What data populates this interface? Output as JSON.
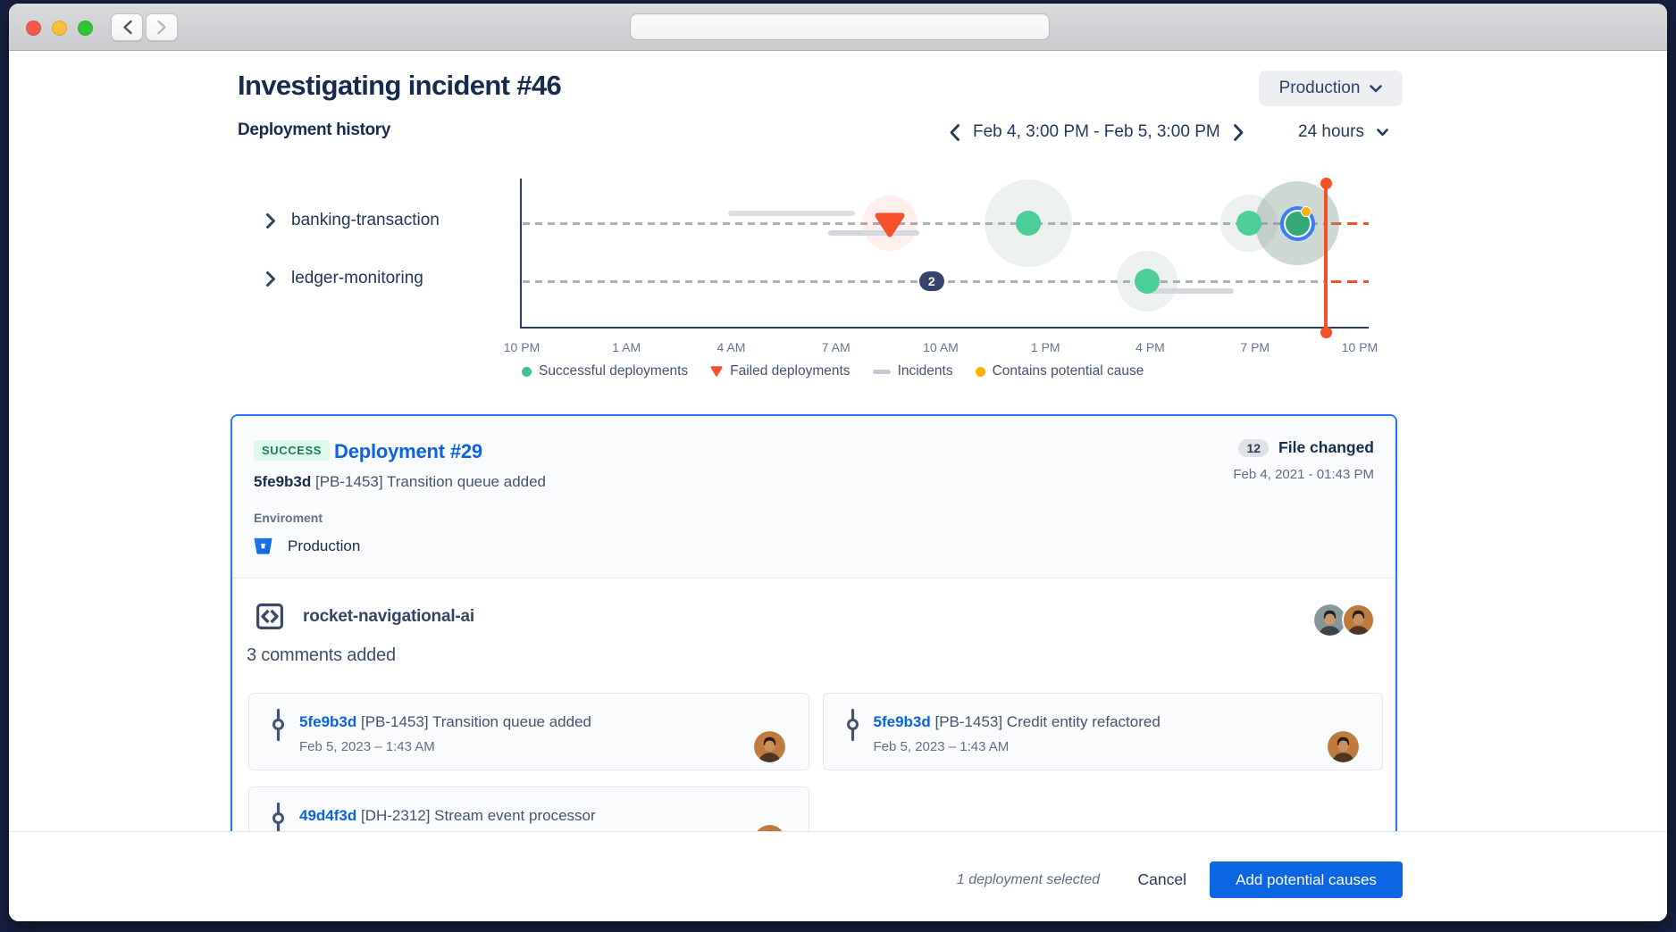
{
  "window": {
    "controls": [
      "close",
      "minimize",
      "zoom"
    ],
    "url_value": ""
  },
  "header": {
    "title": "Investigating incident #46",
    "environment_selector": "Production",
    "section_title": "Deployment history",
    "date_range": "Feb 4, 3:00 PM - Feb 5, 3:00 PM",
    "time_window": "24 hours"
  },
  "chart_data": {
    "type": "timeline",
    "title": "Deployment history",
    "x_ticks": [
      "10 PM",
      "1 AM",
      "4 AM",
      "7 AM",
      "10 AM",
      "1 PM",
      "4 PM",
      "7 PM",
      "10 PM"
    ],
    "x_range_hours": 24,
    "grid": "dashed-row-lines",
    "legend_position": "bottom",
    "rows": [
      {
        "label": "banking-transaction",
        "incidents": [
          {
            "start_h": 5.9,
            "end_h": 9.55,
            "lane": -1
          },
          {
            "start_h": 8.78,
            "end_h": 11.39,
            "lane": 1
          }
        ],
        "deployments": [
          {
            "time_h": 10.55,
            "status": "failed",
            "halo_r": 31
          },
          {
            "time_h": 14.5,
            "status": "success",
            "halo_r": 49
          },
          {
            "time_h": 20.84,
            "status": "success",
            "halo_r": 32
          },
          {
            "time_h": 22.22,
            "status": "success",
            "halo_r": 47,
            "selected": true,
            "potential_cause": true
          }
        ],
        "clusters": []
      },
      {
        "label": "ledger-monitoring",
        "incidents": [
          {
            "start_h": 17.75,
            "end_h": 20.38,
            "lane": 1
          }
        ],
        "deployments": [
          {
            "time_h": 17.9,
            "status": "success",
            "halo_r": 34
          }
        ],
        "clusters": [
          {
            "time_h": 11.74,
            "count": "2"
          }
        ]
      }
    ],
    "now_marker_h": 23.04,
    "legend": [
      {
        "icon": "success-dot",
        "label": "Successful deployments"
      },
      {
        "icon": "failed-triangle",
        "label": "Failed deployments"
      },
      {
        "icon": "incident-bar",
        "label": "Incidents"
      },
      {
        "icon": "cause-dot",
        "label": "Contains potential cause"
      }
    ]
  },
  "card": {
    "status_badge": "SUCCESS",
    "title": "Deployment #29",
    "files_count": "12",
    "files_label": "File changed",
    "timestamp": "Feb 4, 2021 - 01:43 PM",
    "commit_hash": "5fe9b3d",
    "commit_message": "[PB-1453] Transition queue added",
    "environment_label": "Enviroment",
    "environment_value": "Production",
    "repo_name": "rocket-navigational-ai",
    "comments_summary": "3 comments added",
    "commits": [
      {
        "hash": "5fe9b3d",
        "message": "[PB-1453] Transition queue added",
        "date": "Feb 5, 2023 – 1:43 AM",
        "avatar": 1
      },
      {
        "hash": "5fe9b3d",
        "message": "[PB-1453] Credit entity refactored",
        "date": "Feb 5, 2023 – 1:43 AM",
        "avatar": 1
      },
      {
        "hash": "49d4f3d",
        "message": "[DH-2312] Stream event processor",
        "date": "",
        "avatar": 1
      }
    ]
  },
  "footer": {
    "selection_status": "1 deployment selected",
    "cancel_label": "Cancel",
    "primary_label": "Add potential causes"
  },
  "avatars": [
    {
      "bg": "#87989d",
      "skin": "#c9996c",
      "hair": "#26221f",
      "shirt": "#3c4248"
    },
    {
      "bg": "#bf7a3e",
      "skin": "#c79260",
      "hair": "#2b1d14",
      "shirt": "#4a3526"
    }
  ],
  "colors": {
    "frame": "#172143",
    "heading": "#172b4d",
    "secondary_text": "#44546f",
    "tertiary_text": "#626f86",
    "accent_blue": "#0c66e4",
    "selection_blue": "#2277f5",
    "ring_blue": "#3a7df8",
    "success_green": "#4bce97",
    "selected_green": "#36a878",
    "badge_green_bg": "#dff8ec",
    "badge_green_text": "#1d7f55",
    "failed_red": "#f4502b",
    "cause_yellow": "#ffb000",
    "incident_gray": "#dbdee3",
    "grid_dash": "#a9b1be",
    "cluster_navy": "#36446b"
  }
}
